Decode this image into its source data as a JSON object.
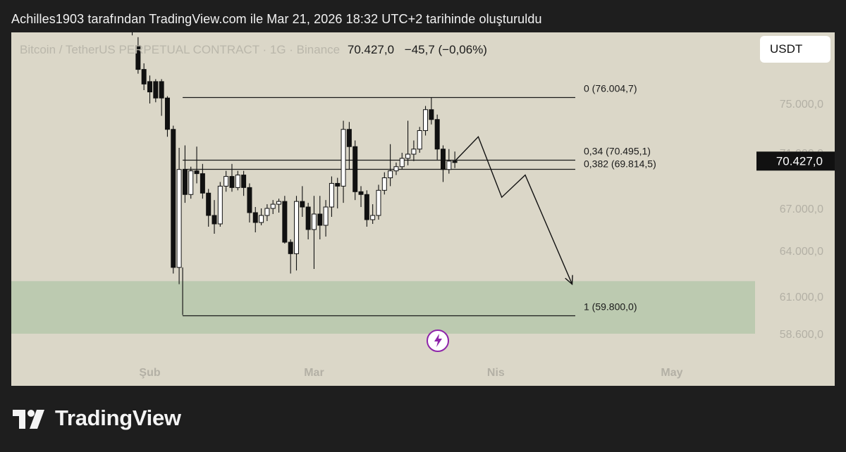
{
  "caption": "Achilles1903 tarafından TradingView.com ile Mar 21, 2026 18:32 UTC+2 tarihinde oluşturuldu",
  "symbol": {
    "name": "Bitcoin / TetherUS PERPETUAL CONTRACT · 1G · Binance",
    "last": "70.427,0",
    "change": "−45,7 (−0,06%)"
  },
  "currency_button": "USDT",
  "brand": "TradingView",
  "colors": {
    "panel_bg": "#dbd7c8",
    "zone": "#bccab0",
    "candle_up": "#ffffff",
    "candle_down": "#111111",
    "axis_text": "#b3b0a5",
    "annotation_accent": "#8e24aa"
  },
  "chart_data": {
    "type": "candlestick",
    "price_axis": {
      "ticks": [
        {
          "value": 75000,
          "label": "75.000,0"
        },
        {
          "value": 71000,
          "label": "71.000,0"
        },
        {
          "value": 67000,
          "label": "67.000,0"
        },
        {
          "value": 64000,
          "label": "64.000,0"
        },
        {
          "value": 61000,
          "label": "61.000,0"
        },
        {
          "value": 58600,
          "label": "58.600,0"
        }
      ],
      "last_price": {
        "value": 70427,
        "label": "70.427,0"
      }
    },
    "time_axis": {
      "ticks": [
        {
          "index": 0,
          "label": "Şub"
        },
        {
          "index": 28,
          "label": "Mar"
        },
        {
          "index": 59,
          "label": "Nis"
        },
        {
          "index": 89,
          "label": "May"
        }
      ]
    },
    "candles": [
      {
        "i": -3,
        "o": 87500,
        "h": 88600,
        "c": 87100,
        "l": 86200
      },
      {
        "i": -2,
        "o": 84500,
        "h": 85900,
        "c": 80600,
        "l": 79900
      },
      {
        "i": -1,
        "o": 80600,
        "h": 81600,
        "c": 78200,
        "l": 77200
      },
      {
        "i": 0,
        "o": 78600,
        "h": 79600,
        "c": 76900,
        "l": 75000
      },
      {
        "i": 1,
        "o": 78600,
        "h": 79000,
        "c": 75900,
        "l": 75200
      },
      {
        "i": 2,
        "o": 78600,
        "h": 79000,
        "c": 75900,
        "l": 74000
      },
      {
        "i": 3,
        "o": 75900,
        "h": 76200,
        "c": 72900,
        "l": 72300
      },
      {
        "i": 4,
        "o": 72900,
        "h": 73200,
        "c": 62900,
        "l": 62500
      },
      {
        "i": 5,
        "o": 62900,
        "h": 71400,
        "c": 69800,
        "l": 61800
      },
      {
        "i": 6,
        "o": 69800,
        "h": 71600,
        "c": 68000,
        "l": 67400
      },
      {
        "i": 7,
        "o": 68000,
        "h": 70000,
        "c": 69700,
        "l": 67700
      },
      {
        "i": 8,
        "o": 69700,
        "h": 71500,
        "c": 69500,
        "l": 68800
      },
      {
        "i": 9,
        "o": 69500,
        "h": 70200,
        "c": 68100,
        "l": 67700
      },
      {
        "i": 10,
        "o": 68100,
        "h": 68400,
        "c": 66500,
        "l": 65700
      },
      {
        "i": 11,
        "o": 66500,
        "h": 67600,
        "c": 65900,
        "l": 65200
      },
      {
        "i": 12,
        "o": 65900,
        "h": 68900,
        "c": 68600,
        "l": 65700
      },
      {
        "i": 13,
        "o": 68600,
        "h": 69700,
        "c": 69300,
        "l": 68200
      },
      {
        "i": 14,
        "o": 69300,
        "h": 70200,
        "c": 68500,
        "l": 68200
      },
      {
        "i": 15,
        "o": 68500,
        "h": 69700,
        "c": 69400,
        "l": 68300
      },
      {
        "i": 16,
        "o": 69400,
        "h": 69700,
        "c": 68500,
        "l": 67900
      },
      {
        "i": 17,
        "o": 68500,
        "h": 68800,
        "c": 66700,
        "l": 66000
      },
      {
        "i": 18,
        "o": 66700,
        "h": 67100,
        "c": 66000,
        "l": 65300
      },
      {
        "i": 19,
        "o": 66000,
        "h": 67000,
        "c": 66500,
        "l": 65800
      },
      {
        "i": 20,
        "o": 66500,
        "h": 67300,
        "c": 67000,
        "l": 66100
      },
      {
        "i": 21,
        "o": 67000,
        "h": 67600,
        "c": 67300,
        "l": 66600
      },
      {
        "i": 22,
        "o": 67300,
        "h": 67700,
        "c": 67500,
        "l": 66700
      },
      {
        "i": 23,
        "o": 67500,
        "h": 67900,
        "c": 64600,
        "l": 64500
      },
      {
        "i": 24,
        "o": 64600,
        "h": 64800,
        "c": 63800,
        "l": 62500
      },
      {
        "i": 25,
        "o": 63800,
        "h": 67900,
        "c": 67500,
        "l": 62700
      },
      {
        "i": 26,
        "o": 67500,
        "h": 68600,
        "c": 67100,
        "l": 66400
      },
      {
        "i": 27,
        "o": 67100,
        "h": 67400,
        "c": 65500,
        "l": 64800
      },
      {
        "i": 28,
        "o": 65500,
        "h": 67900,
        "c": 66600,
        "l": 62800
      },
      {
        "i": 29,
        "o": 66600,
        "h": 67900,
        "c": 65800,
        "l": 64800
      },
      {
        "i": 30,
        "o": 65800,
        "h": 67600,
        "c": 67100,
        "l": 65000
      },
      {
        "i": 31,
        "o": 67100,
        "h": 69300,
        "c": 68800,
        "l": 66400
      },
      {
        "i": 32,
        "o": 68800,
        "h": 69200,
        "c": 68600,
        "l": 67000
      },
      {
        "i": 33,
        "o": 68600,
        "h": 73600,
        "c": 72900,
        "l": 67400
      },
      {
        "i": 34,
        "o": 72900,
        "h": 73500,
        "c": 71500,
        "l": 69800
      },
      {
        "i": 35,
        "o": 71500,
        "h": 72000,
        "c": 68200,
        "l": 67600
      },
      {
        "i": 36,
        "o": 68200,
        "h": 68600,
        "c": 68000,
        "l": 67100
      },
      {
        "i": 37,
        "o": 68000,
        "h": 68300,
        "c": 66200,
        "l": 65700
      },
      {
        "i": 38,
        "o": 66200,
        "h": 67300,
        "c": 66500,
        "l": 65900
      },
      {
        "i": 39,
        "o": 66500,
        "h": 68700,
        "c": 68300,
        "l": 66200
      },
      {
        "i": 40,
        "o": 68300,
        "h": 69600,
        "c": 69200,
        "l": 68000
      },
      {
        "i": 41,
        "o": 69200,
        "h": 71700,
        "c": 69700,
        "l": 68600
      },
      {
        "i": 42,
        "o": 69700,
        "h": 70300,
        "c": 70000,
        "l": 69400
      },
      {
        "i": 43,
        "o": 70000,
        "h": 71000,
        "c": 70600,
        "l": 69800
      },
      {
        "i": 44,
        "o": 70600,
        "h": 73600,
        "c": 70900,
        "l": 70100
      },
      {
        "i": 45,
        "o": 70900,
        "h": 72000,
        "c": 71300,
        "l": 70400
      },
      {
        "i": 46,
        "o": 71300,
        "h": 73100,
        "c": 72800,
        "l": 71000
      },
      {
        "i": 47,
        "o": 72800,
        "h": 74800,
        "c": 74500,
        "l": 72400
      },
      {
        "i": 48,
        "o": 74500,
        "h": 76000,
        "c": 73700,
        "l": 73300
      },
      {
        "i": 49,
        "o": 73700,
        "h": 74100,
        "c": 71300,
        "l": 70500
      },
      {
        "i": 50,
        "o": 71300,
        "h": 71600,
        "c": 69800,
        "l": 68900
      },
      {
        "i": 51,
        "o": 69800,
        "h": 71300,
        "c": 70400,
        "l": 69500
      },
      {
        "i": 52,
        "o": 70400,
        "h": 71100,
        "c": 70300,
        "l": 69900
      }
    ],
    "fib_levels": [
      {
        "ratio": "0",
        "price": 76004.7,
        "label": "0 (76.004,7)"
      },
      {
        "ratio": "0.34",
        "price": 70495.1,
        "label": "0,34 (70.495,1)"
      },
      {
        "ratio": "0.382",
        "price": 69814.5,
        "label": "0,382 (69.814,5)"
      },
      {
        "ratio": "1",
        "price": 59800.0,
        "label": "1 (59.800,0)"
      }
    ],
    "fib_start_index": 5,
    "demand_zone": {
      "from": 58600,
      "to": 62000
    },
    "projection_path": [
      {
        "i": 52,
        "p": 70400
      },
      {
        "i": 56,
        "p": 72300
      },
      {
        "i": 60,
        "p": 67800
      },
      {
        "i": 64,
        "p": 69400
      },
      {
        "i": 72,
        "p": 61800
      }
    ]
  }
}
